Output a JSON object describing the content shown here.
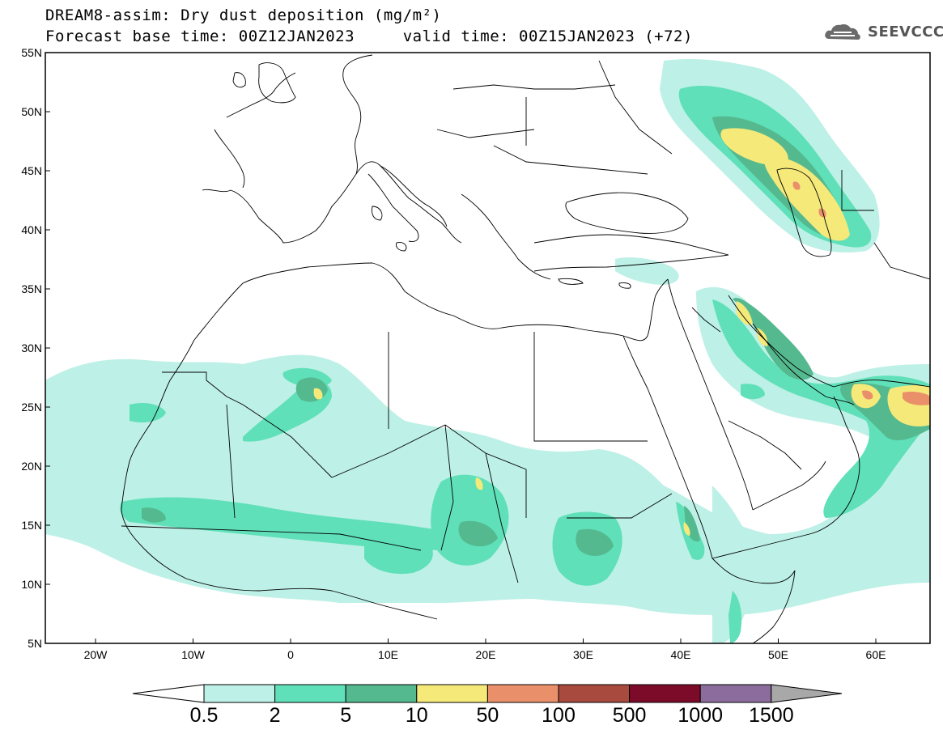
{
  "header": {
    "title_line1": "DREAM8-assim: Dry dust deposition (mg/m²)",
    "title_line2": "Forecast base time: 00Z12JAN2023     valid time: 00Z15JAN2023 (+72)",
    "logo_text": "SEEVCCC",
    "logo_icon": "cloud-logo-icon"
  },
  "map": {
    "lat_labels": [
      "55N",
      "50N",
      "45N",
      "40N",
      "35N",
      "30N",
      "25N",
      "20N",
      "15N",
      "10N",
      "5N"
    ],
    "lon_labels": [
      "20W",
      "10W",
      "0",
      "10E",
      "20E",
      "30E",
      "40E",
      "50E",
      "60E"
    ]
  },
  "legend": {
    "levels": [
      "0.5",
      "2",
      "5",
      "10",
      "50",
      "100",
      "500",
      "1000",
      "1500"
    ],
    "colors": [
      "#bdf0e6",
      "#5fe0b8",
      "#55b98f",
      "#f5e97a",
      "#e9906a",
      "#a94a3e",
      "#7c0b2a",
      "#8b6c9c",
      "#a8a8a8"
    ],
    "under_color": "#ffffff"
  },
  "colors": {
    "lvl1": "#bdf0e6",
    "lvl2": "#5fe0b8",
    "lvl3": "#55b98f",
    "lvl4": "#f5e97a",
    "lvl5": "#e9906a"
  }
}
